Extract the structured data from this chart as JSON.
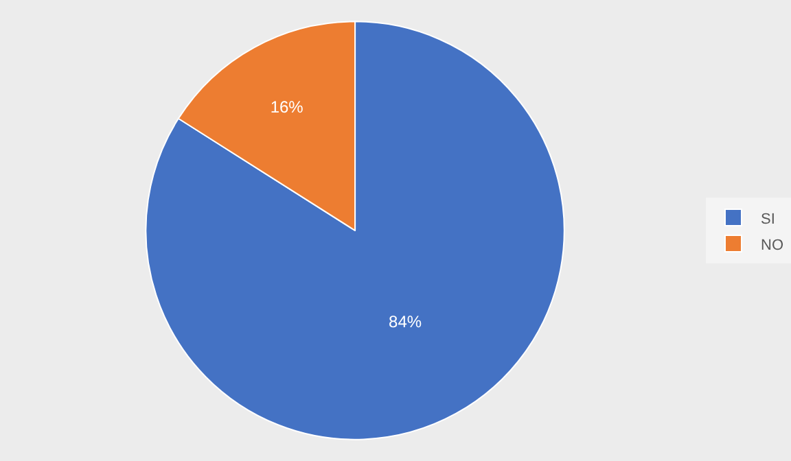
{
  "chart_data": {
    "type": "pie",
    "categories": [
      "SI",
      "NO"
    ],
    "values": [
      84,
      16
    ],
    "colors": [
      "#4472c4",
      "#ed7d31"
    ],
    "value_labels": [
      "84%",
      "16%"
    ],
    "legend": "right"
  }
}
